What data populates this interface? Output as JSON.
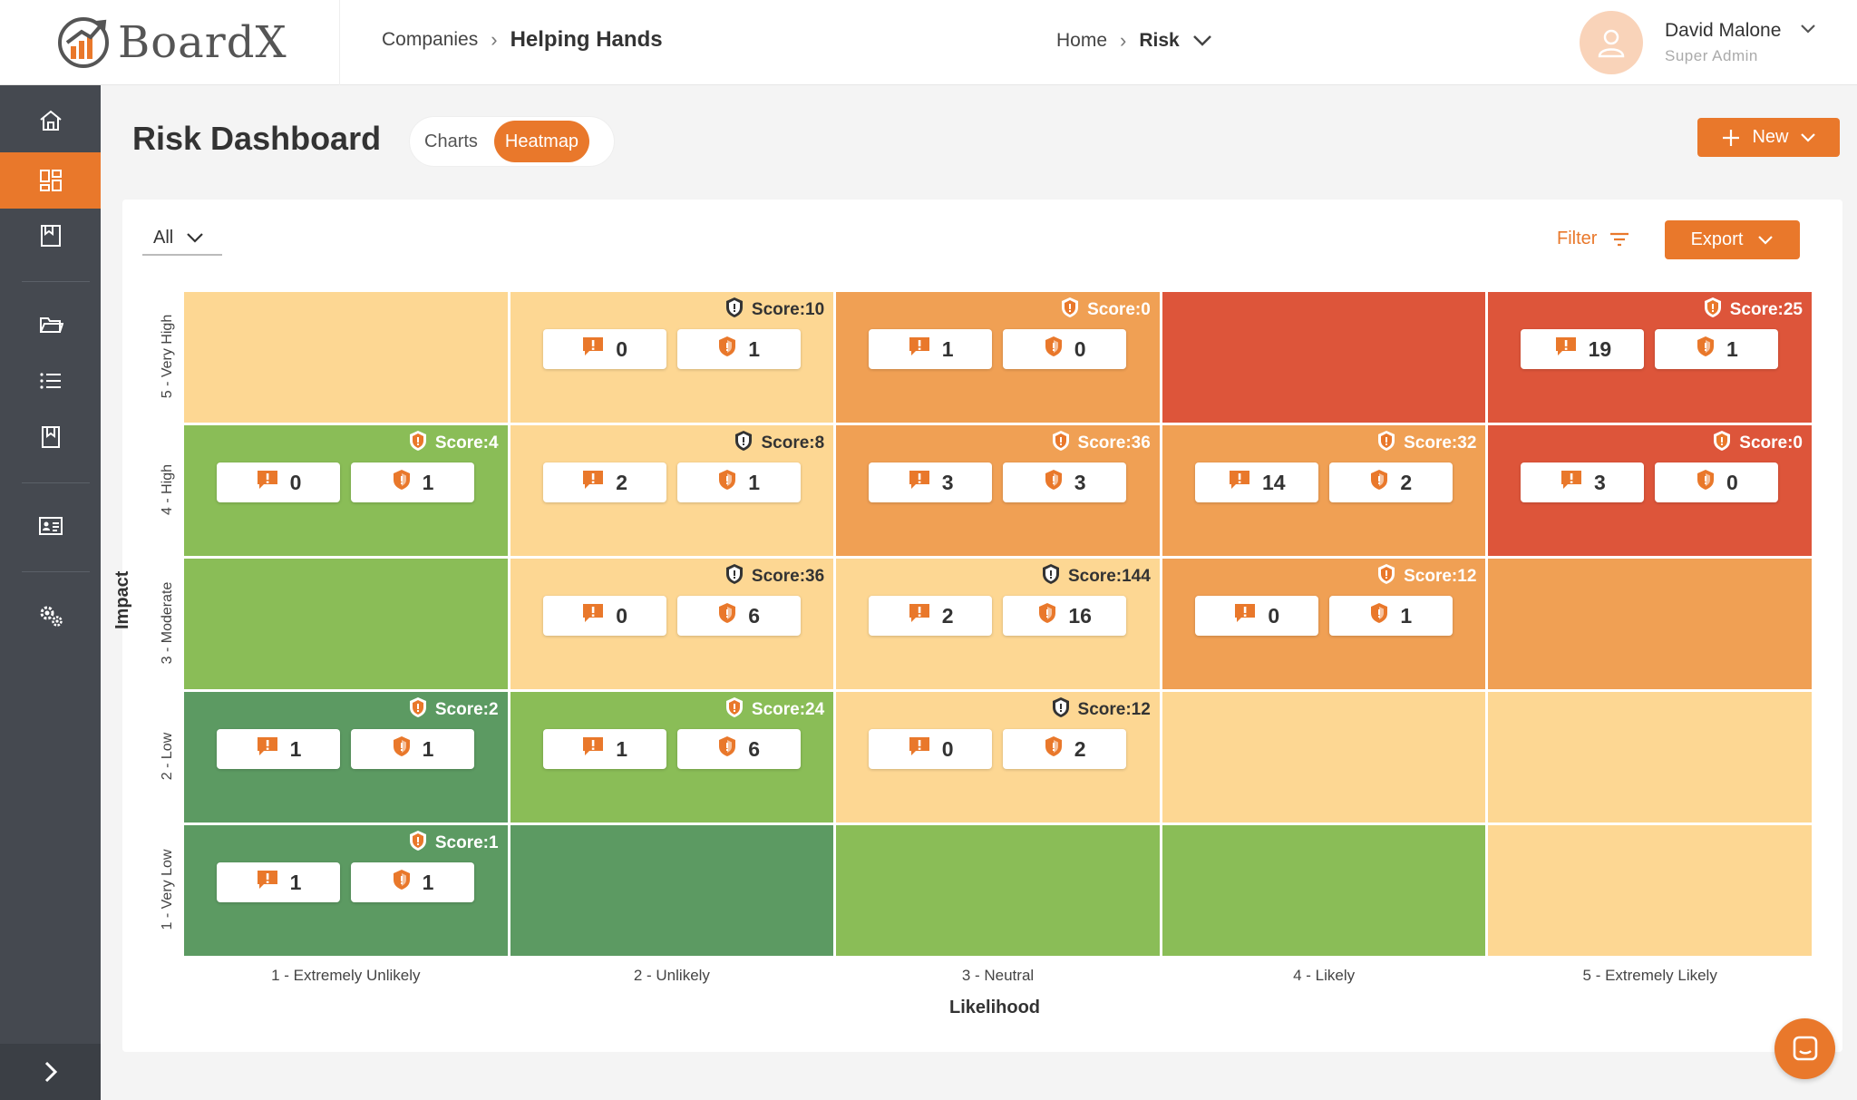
{
  "app": {
    "name": "BoardX"
  },
  "breadcrumb": {
    "companies": "Companies",
    "company": "Helping Hands"
  },
  "nav": {
    "home": "Home",
    "section": "Risk"
  },
  "user": {
    "name": "David Malone",
    "role": "Super Admin"
  },
  "page": {
    "title": "Risk Dashboard"
  },
  "view_toggle": {
    "charts": "Charts",
    "heatmap": "Heatmap",
    "active": "Heatmap"
  },
  "actions": {
    "new_label": "New",
    "filter_label": "Filter",
    "export_label": "Export"
  },
  "filter_select": {
    "value": "All"
  },
  "heatmap": {
    "x_title": "Likelihood",
    "y_title": "Impact",
    "x_labels": [
      "1 - Extremely Unlikely",
      "2 - Unlikely",
      "3 - Neutral",
      "4 - Likely",
      "5 - Extremely Likely"
    ],
    "y_labels": [
      "5 - Very High",
      "4 - High",
      "3 - Moderate",
      "2 - Low",
      "1 - Very Low"
    ],
    "score_prefix": "Score: ",
    "rows": [
      [
        {
          "color": "peach"
        },
        {
          "color": "peach",
          "score": "10",
          "issues": "0",
          "risks": "1"
        },
        {
          "color": "orange",
          "score": "0",
          "issues": "1",
          "risks": "0"
        },
        {
          "color": "red"
        },
        {
          "color": "red",
          "score": "25",
          "issues": "19",
          "risks": "1"
        }
      ],
      [
        {
          "color": "green",
          "score": "4",
          "issues": "0",
          "risks": "1"
        },
        {
          "color": "peach",
          "score": "8",
          "issues": "2",
          "risks": "1"
        },
        {
          "color": "orange",
          "score": "36",
          "issues": "3",
          "risks": "3"
        },
        {
          "color": "orange",
          "score": "32",
          "issues": "14",
          "risks": "2"
        },
        {
          "color": "red",
          "score": "0",
          "issues": "3",
          "risks": "0"
        }
      ],
      [
        {
          "color": "green"
        },
        {
          "color": "peach",
          "score": "36",
          "issues": "0",
          "risks": "6"
        },
        {
          "color": "peach",
          "score": "144",
          "issues": "2",
          "risks": "16"
        },
        {
          "color": "orange",
          "score": "12",
          "issues": "0",
          "risks": "1"
        },
        {
          "color": "orange"
        }
      ],
      [
        {
          "color": "dgreen",
          "score": "2",
          "issues": "1",
          "risks": "1"
        },
        {
          "color": "green",
          "score": "24",
          "issues": "1",
          "risks": "6"
        },
        {
          "color": "peach",
          "score": "12",
          "issues": "0",
          "risks": "2"
        },
        {
          "color": "peach"
        },
        {
          "color": "peach"
        }
      ],
      [
        {
          "color": "dgreen",
          "score": "1",
          "issues": "1",
          "risks": "1"
        },
        {
          "color": "dgreen"
        },
        {
          "color": "green"
        },
        {
          "color": "green"
        },
        {
          "color": "peach"
        }
      ]
    ]
  },
  "colors": {
    "accent": "#e9782b",
    "sidebar": "#454950",
    "peach": "#fdd793",
    "orange": "#f0a054",
    "red": "#dd553a",
    "green": "#8abd57",
    "dgreen": "#5c9a62"
  },
  "icons": {
    "sidebar": [
      "home-icon",
      "dashboard-icon",
      "register-icon",
      "folder-icon",
      "list-icon",
      "bookmark-icon",
      "id-card-icon",
      "settings-icon"
    ],
    "cell": [
      "issue-icon",
      "risk-shield-icon"
    ]
  }
}
